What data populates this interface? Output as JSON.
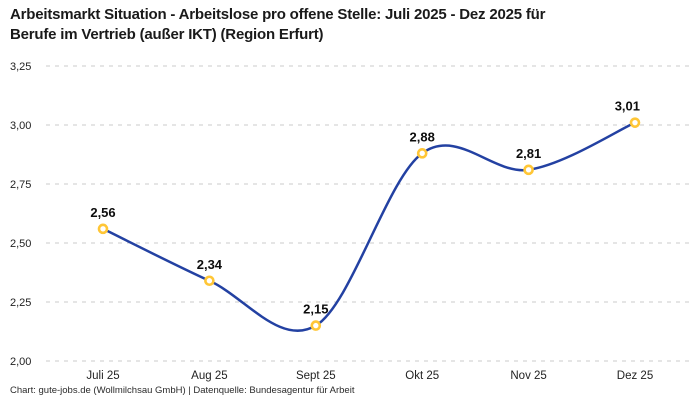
{
  "header": {
    "title": "Arbeitsmarkt Situation - Arbeitslose pro offene Stelle: Juli 2025 - Dez 2025 für Berufe im Vertrieb (außer IKT) (Region Erfurt)",
    "title_lines": [
      "Arbeitsmarkt Situation - Arbeitslose pro offene Stelle: Juli 2025 - Dez 2025 für",
      "Berufe im Vertrieb (außer IKT) (Region Erfurt)"
    ]
  },
  "footer": {
    "text": "Chart: gute-jobs.de (Wollmilchsau GmbH) | Datenquelle: Bundesagentur für Arbeit"
  },
  "colors": {
    "line": "#2341a2",
    "marker_ring": "#ffc636",
    "marker_fill": "#ffffff",
    "grid": "#cbcbcb",
    "title_text": "#1a1a1a",
    "axis_text": "#222222",
    "data_label_text": "#0d0d0d"
  },
  "chart_data": {
    "type": "line",
    "categories": [
      "Juli 25",
      "Aug 25",
      "Sept 25",
      "Okt 25",
      "Nov 25",
      "Dez 25"
    ],
    "values": [
      2.56,
      2.34,
      2.15,
      2.88,
      2.81,
      3.01
    ],
    "value_labels": [
      "2,56",
      "2,34",
      "2,15",
      "2,88",
      "2,81",
      "3,01"
    ],
    "ytick_labels": [
      "2,00",
      "2,25",
      "2,50",
      "2,75",
      "3,00",
      "3,25"
    ],
    "ylim": [
      2.0,
      3.25
    ],
    "title": "Arbeitsmarkt Situation - Arbeitslose pro offene Stelle: Juli 2025 - Dez 2025 für Berufe im Vertrieb (außer IKT) (Region Erfurt)",
    "xlabel": "",
    "ylabel": "",
    "grid": "horizontal-dashed",
    "legend": "none",
    "line_style": "smooth-spline",
    "marker_style": "open-circle"
  }
}
